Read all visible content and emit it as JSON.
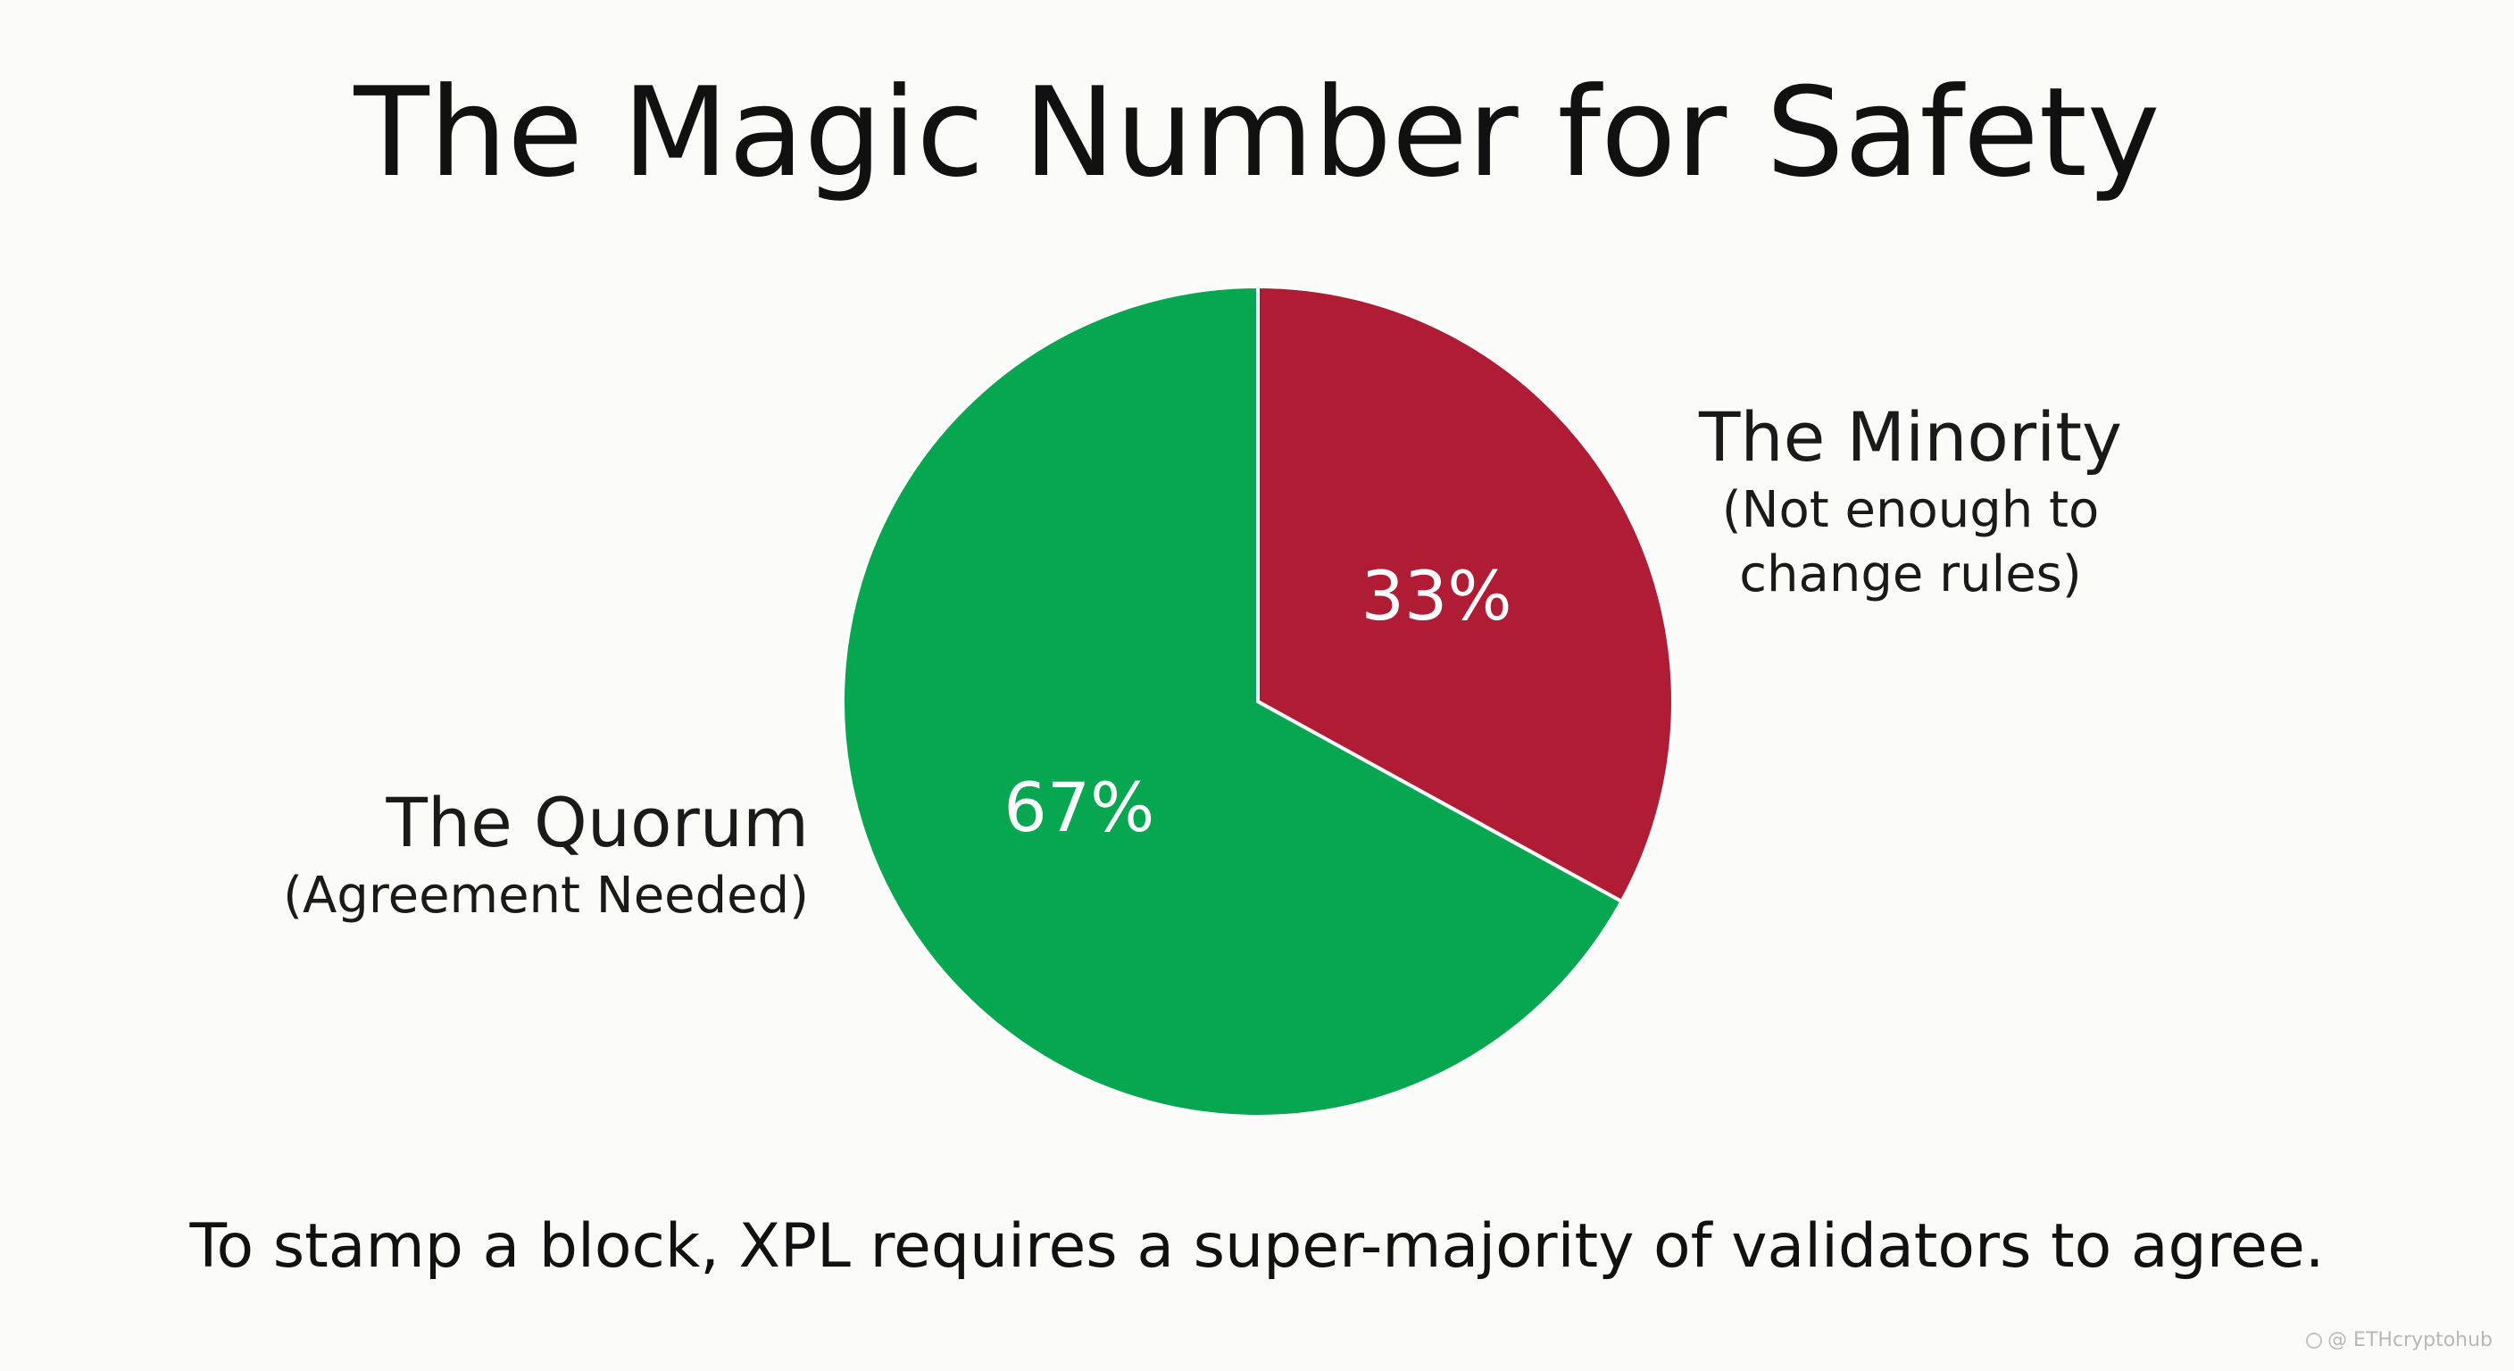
{
  "title": "The Magic Number for Safety",
  "chart_data": {
    "type": "pie",
    "slices": [
      {
        "name": "The Minority",
        "sublabel": "(Not enough to change rules)",
        "value": 33,
        "value_label": "33%",
        "color": "#b01c33"
      },
      {
        "name": "The Quorum",
        "sublabel": "(Agreement Needed)",
        "value": 67,
        "value_label": "67%",
        "color": "#07a650"
      }
    ],
    "start": "12 o'clock",
    "direction": "clockwise",
    "slice_border_color": "#ffffff"
  },
  "caption": "To stamp a block, XPL requires a super-majority of validators to agree.",
  "watermark": "@ ETHcryptohub",
  "watermark_icon": "logo-icon"
}
